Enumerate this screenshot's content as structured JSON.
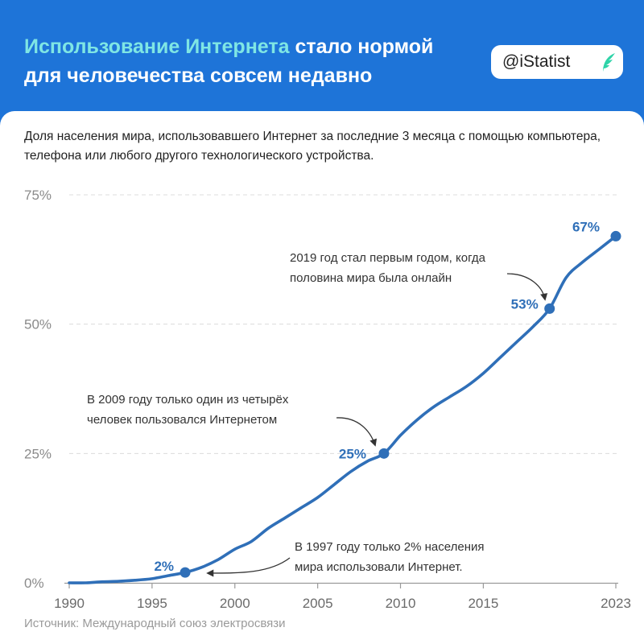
{
  "header": {
    "title_accent": "Использование Интернета",
    "title_rest": " стало нормой для человечества совсем недавно",
    "badge": "@iStatist"
  },
  "subtitle": "Доля населения мира, использовавшего Интернет за последние 3 месяца с помощью компьютера, телефона или любого другого технологического устройства.",
  "source": "Источник: Международный союз электросвязи",
  "colors": {
    "header_bg": "#1e74d8",
    "accent": "#7fe6e4",
    "line": "#2f6fb8",
    "logo": "#2ed3a8"
  },
  "chart_data": {
    "type": "line",
    "title": "",
    "xlabel": "",
    "ylabel": "",
    "xlim": [
      1990,
      2023
    ],
    "ylim": [
      0,
      75
    ],
    "grid": true,
    "y_ticks": [
      0,
      25,
      50,
      75
    ],
    "y_tick_labels": [
      "0%",
      "25%",
      "50%",
      "75%"
    ],
    "x_ticks": [
      1990,
      1995,
      2000,
      2005,
      2010,
      2015,
      2023
    ],
    "x_tick_labels": [
      "1990",
      "1995",
      "2000",
      "2005",
      "2010",
      "2015",
      "2023"
    ],
    "series": [
      {
        "x": [
          1990,
          1991,
          1992,
          1993,
          1994,
          1995,
          1996,
          1997,
          1998,
          1999,
          2000,
          2001,
          2002,
          2003,
          2004,
          2005,
          2006,
          2007,
          2008,
          2009,
          2010,
          2011,
          2012,
          2013,
          2014,
          2015,
          2016,
          2017,
          2018,
          2019,
          2020,
          2021,
          2022,
          2023
        ],
        "values": [
          0,
          0,
          0.2,
          0.3,
          0.5,
          0.8,
          1.4,
          2,
          3,
          4.5,
          6.5,
          8,
          10.5,
          12.5,
          14.5,
          16.5,
          19,
          21.5,
          23.5,
          25,
          28.5,
          31.5,
          34,
          36,
          38,
          40.5,
          43.5,
          46.5,
          49.5,
          53,
          59,
          62,
          64.5,
          67
        ]
      }
    ],
    "highlights": [
      {
        "x": 1997,
        "y": 2,
        "label": "2%"
      },
      {
        "x": 2009,
        "y": 25,
        "label": "25%"
      },
      {
        "x": 2019,
        "y": 53,
        "label": "53%"
      },
      {
        "x": 2023,
        "y": 67,
        "label": "67%"
      }
    ],
    "annotations": [
      {
        "x": 1997,
        "y": 2,
        "lines": [
          "В 1997 году только 2% населения",
          "мира использовали Интернет."
        ]
      },
      {
        "x": 2009,
        "y": 25,
        "lines": [
          "В 2009 году только один из четырёх",
          "человек пользовался Интернетом"
        ]
      },
      {
        "x": 2019,
        "y": 53,
        "lines": [
          "2019 год стал первым годом, когда",
          "половина мира была онлайн"
        ]
      }
    ]
  }
}
